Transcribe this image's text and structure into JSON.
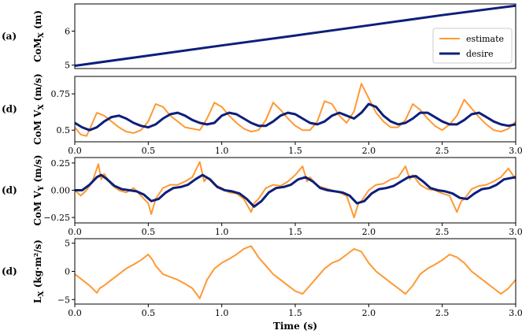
{
  "chart_data": [
    {
      "type": "line",
      "tag": "(a)",
      "ylabel": "CoM",
      "ylabel_sub": "X",
      "ylabel_unit": "(m)",
      "xlim": [
        0.0,
        3.0
      ],
      "ylim": [
        4.9,
        6.8
      ],
      "yticks": [
        5,
        6
      ],
      "xticks": [],
      "legend": {
        "placement": "right",
        "entries": [
          "estimate",
          "desire"
        ]
      },
      "series": [
        {
          "name": "estimate",
          "color": "#ff9933",
          "x": [
            0.0,
            0.5,
            1.0,
            1.5,
            2.0,
            2.5,
            3.0
          ],
          "values": [
            4.98,
            5.28,
            5.58,
            5.87,
            6.17,
            6.47,
            6.75
          ]
        },
        {
          "name": "desire",
          "color": "#0d1f7a",
          "x": [
            0.0,
            0.5,
            1.0,
            1.5,
            2.0,
            2.5,
            3.0
          ],
          "values": [
            4.98,
            5.28,
            5.58,
            5.87,
            6.17,
            6.47,
            6.75
          ]
        }
      ]
    },
    {
      "type": "line",
      "tag": "(d)",
      "ylabel": "CoM V",
      "ylabel_sub": "X",
      "ylabel_unit": "(m/s)",
      "xlim": [
        0.0,
        3.0
      ],
      "ylim": [
        0.42,
        0.87
      ],
      "yticks": [
        0.5,
        0.75
      ],
      "xticks": [
        "0.0",
        "0.5",
        "1.0",
        "1.5",
        "2.0",
        "2.5",
        "3.0"
      ],
      "series": [
        {
          "name": "estimate",
          "color": "#ff9933",
          "x": [
            0.0,
            0.04,
            0.08,
            0.12,
            0.15,
            0.2,
            0.25,
            0.3,
            0.35,
            0.4,
            0.45,
            0.5,
            0.55,
            0.6,
            0.65,
            0.7,
            0.75,
            0.8,
            0.85,
            0.9,
            0.95,
            1.0,
            1.05,
            1.1,
            1.15,
            1.2,
            1.25,
            1.3,
            1.35,
            1.4,
            1.45,
            1.5,
            1.55,
            1.6,
            1.65,
            1.7,
            1.75,
            1.8,
            1.85,
            1.9,
            1.95,
            2.0,
            2.05,
            2.1,
            2.15,
            2.2,
            2.25,
            2.3,
            2.35,
            2.4,
            2.45,
            2.5,
            2.55,
            2.6,
            2.65,
            2.7,
            2.75,
            2.8,
            2.85,
            2.9,
            2.95,
            3.0
          ],
          "values": [
            0.52,
            0.47,
            0.46,
            0.55,
            0.62,
            0.6,
            0.56,
            0.52,
            0.49,
            0.48,
            0.5,
            0.56,
            0.68,
            0.66,
            0.6,
            0.56,
            0.52,
            0.51,
            0.5,
            0.58,
            0.69,
            0.66,
            0.6,
            0.55,
            0.51,
            0.49,
            0.5,
            0.57,
            0.69,
            0.64,
            0.58,
            0.53,
            0.5,
            0.5,
            0.56,
            0.7,
            0.68,
            0.6,
            0.55,
            0.63,
            0.82,
            0.72,
            0.62,
            0.56,
            0.52,
            0.52,
            0.57,
            0.68,
            0.64,
            0.58,
            0.53,
            0.5,
            0.54,
            0.6,
            0.71,
            0.65,
            0.59,
            0.54,
            0.5,
            0.49,
            0.51,
            0.56
          ]
        },
        {
          "name": "desire",
          "color": "#0d1f7a",
          "x": [
            0.0,
            0.05,
            0.1,
            0.15,
            0.2,
            0.25,
            0.3,
            0.35,
            0.4,
            0.45,
            0.5,
            0.55,
            0.6,
            0.65,
            0.7,
            0.75,
            0.8,
            0.85,
            0.9,
            0.95,
            1.0,
            1.05,
            1.1,
            1.15,
            1.2,
            1.25,
            1.3,
            1.35,
            1.4,
            1.45,
            1.5,
            1.55,
            1.6,
            1.65,
            1.7,
            1.75,
            1.8,
            1.85,
            1.9,
            1.95,
            2.0,
            2.05,
            2.1,
            2.15,
            2.2,
            2.25,
            2.3,
            2.35,
            2.4,
            2.45,
            2.5,
            2.55,
            2.6,
            2.65,
            2.7,
            2.75,
            2.8,
            2.85,
            2.9,
            2.95,
            3.0
          ],
          "values": [
            0.55,
            0.52,
            0.5,
            0.52,
            0.56,
            0.59,
            0.6,
            0.58,
            0.55,
            0.53,
            0.52,
            0.54,
            0.58,
            0.61,
            0.62,
            0.6,
            0.57,
            0.55,
            0.54,
            0.55,
            0.6,
            0.62,
            0.61,
            0.58,
            0.55,
            0.53,
            0.53,
            0.56,
            0.6,
            0.62,
            0.61,
            0.58,
            0.55,
            0.54,
            0.56,
            0.6,
            0.62,
            0.6,
            0.58,
            0.62,
            0.68,
            0.66,
            0.6,
            0.56,
            0.54,
            0.55,
            0.58,
            0.62,
            0.62,
            0.59,
            0.56,
            0.54,
            0.54,
            0.57,
            0.61,
            0.62,
            0.59,
            0.56,
            0.54,
            0.53,
            0.54
          ]
        }
      ]
    },
    {
      "type": "line",
      "tag": "(d)",
      "ylabel": "CoM V",
      "ylabel_sub": "Y",
      "ylabel_unit": "(m/s)",
      "xlim": [
        0.0,
        3.0
      ],
      "ylim": [
        -0.3,
        0.3
      ],
      "yticks": [
        -0.25,
        0.0,
        0.25
      ],
      "ytick_labels": [
        "−0.25",
        "0.00",
        "0.25"
      ],
      "xticks": [
        "0.0",
        "0.5",
        "1.0",
        "1.5",
        "2.0",
        "2.5",
        "3.0"
      ],
      "series": [
        {
          "name": "estimate",
          "color": "#ff9933",
          "x": [
            0.0,
            0.04,
            0.08,
            0.12,
            0.16,
            0.18,
            0.2,
            0.25,
            0.3,
            0.35,
            0.4,
            0.45,
            0.5,
            0.52,
            0.55,
            0.6,
            0.65,
            0.7,
            0.75,
            0.8,
            0.85,
            0.88,
            0.9,
            0.95,
            1.0,
            1.05,
            1.1,
            1.15,
            1.2,
            1.22,
            1.25,
            1.3,
            1.35,
            1.4,
            1.45,
            1.5,
            1.55,
            1.58,
            1.6,
            1.65,
            1.7,
            1.75,
            1.8,
            1.85,
            1.9,
            1.93,
            1.95,
            2.0,
            2.05,
            2.1,
            2.15,
            2.2,
            2.25,
            2.28,
            2.3,
            2.35,
            2.4,
            2.45,
            2.5,
            2.55,
            2.6,
            2.63,
            2.65,
            2.7,
            2.75,
            2.8,
            2.85,
            2.9,
            2.95,
            3.0
          ],
          "values": [
            0.0,
            -0.05,
            0.0,
            0.08,
            0.24,
            0.1,
            0.15,
            0.05,
            0.0,
            -0.02,
            0.02,
            -0.05,
            -0.12,
            -0.22,
            -0.08,
            0.02,
            0.05,
            0.05,
            0.08,
            0.12,
            0.26,
            0.08,
            0.12,
            0.05,
            0.02,
            -0.02,
            -0.03,
            -0.08,
            -0.2,
            -0.12,
            -0.08,
            0.02,
            0.05,
            0.04,
            0.08,
            0.14,
            0.22,
            0.08,
            0.12,
            0.04,
            0.02,
            0.0,
            -0.02,
            -0.05,
            -0.25,
            -0.12,
            -0.1,
            0.0,
            0.05,
            0.06,
            0.1,
            0.12,
            0.22,
            0.1,
            0.14,
            0.05,
            0.01,
            0.0,
            -0.03,
            -0.05,
            -0.2,
            -0.1,
            -0.08,
            0.01,
            0.04,
            0.05,
            0.08,
            0.12,
            0.2,
            0.1
          ]
        },
        {
          "name": "desire",
          "color": "#0d1f7a",
          "x": [
            0.0,
            0.05,
            0.1,
            0.15,
            0.18,
            0.22,
            0.27,
            0.32,
            0.37,
            0.42,
            0.47,
            0.52,
            0.57,
            0.62,
            0.67,
            0.72,
            0.77,
            0.82,
            0.87,
            0.92,
            0.97,
            1.02,
            1.07,
            1.12,
            1.17,
            1.22,
            1.27,
            1.32,
            1.37,
            1.42,
            1.47,
            1.52,
            1.57,
            1.62,
            1.67,
            1.72,
            1.77,
            1.82,
            1.87,
            1.92,
            1.97,
            2.02,
            2.07,
            2.12,
            2.17,
            2.22,
            2.27,
            2.32,
            2.37,
            2.42,
            2.47,
            2.52,
            2.57,
            2.62,
            2.67,
            2.72,
            2.77,
            2.82,
            2.87,
            2.92,
            3.0
          ],
          "values": [
            0.0,
            0.0,
            0.05,
            0.12,
            0.14,
            0.1,
            0.04,
            0.01,
            0.0,
            -0.01,
            -0.04,
            -0.1,
            -0.08,
            -0.02,
            0.02,
            0.03,
            0.05,
            0.1,
            0.14,
            0.1,
            0.03,
            0.0,
            -0.01,
            -0.03,
            -0.08,
            -0.15,
            -0.1,
            -0.02,
            0.02,
            0.03,
            0.05,
            0.1,
            0.12,
            0.08,
            0.02,
            0.0,
            -0.01,
            -0.02,
            -0.05,
            -0.12,
            -0.1,
            -0.03,
            0.01,
            0.02,
            0.04,
            0.08,
            0.12,
            0.13,
            0.08,
            0.02,
            0.0,
            -0.01,
            -0.03,
            -0.07,
            -0.08,
            -0.03,
            0.01,
            0.02,
            0.05,
            0.1,
            0.12
          ]
        }
      ]
    },
    {
      "type": "line",
      "tag": "(d)",
      "ylabel": "L",
      "ylabel_sub": "X",
      "ylabel_unit": "(kg·m²/s)",
      "xlim": [
        0.0,
        3.0
      ],
      "ylim": [
        -5.8,
        5.8
      ],
      "yticks": [
        -5,
        0,
        5
      ],
      "ytick_labels": [
        "−5",
        "0",
        "5"
      ],
      "xticks": [
        "0.0",
        "0.5",
        "1.0",
        "1.5",
        "2.0",
        "2.5",
        "3.0"
      ],
      "xlabel": "Time (s)",
      "series": [
        {
          "name": "estimate",
          "color": "#ff9933",
          "x": [
            0.0,
            0.05,
            0.1,
            0.15,
            0.17,
            0.2,
            0.25,
            0.3,
            0.35,
            0.4,
            0.45,
            0.5,
            0.53,
            0.55,
            0.6,
            0.65,
            0.7,
            0.75,
            0.8,
            0.85,
            0.9,
            0.95,
            1.0,
            1.05,
            1.1,
            1.15,
            1.2,
            1.25,
            1.3,
            1.35,
            1.4,
            1.45,
            1.5,
            1.55,
            1.6,
            1.65,
            1.7,
            1.75,
            1.8,
            1.85,
            1.9,
            1.95,
            2.0,
            2.05,
            2.1,
            2.15,
            2.2,
            2.25,
            2.3,
            2.35,
            2.4,
            2.45,
            2.5,
            2.55,
            2.6,
            2.65,
            2.7,
            2.75,
            2.8,
            2.85,
            2.9,
            2.95,
            3.0
          ],
          "values": [
            -0.5,
            -1.5,
            -2.5,
            -3.8,
            -3.0,
            -2.5,
            -1.5,
            -0.5,
            0.5,
            1.2,
            2.0,
            3.0,
            2.0,
            1.0,
            -0.5,
            -1.0,
            -1.5,
            -2.2,
            -3.0,
            -4.8,
            -1.5,
            0.5,
            1.5,
            2.2,
            3.0,
            4.0,
            4.5,
            2.5,
            1.0,
            -0.5,
            -1.5,
            -2.5,
            -3.5,
            -4.0,
            -2.5,
            -1.0,
            0.5,
            1.5,
            2.0,
            3.0,
            4.0,
            3.5,
            1.5,
            0.0,
            -1.0,
            -2.0,
            -3.0,
            -4.0,
            -2.5,
            -0.5,
            0.5,
            1.2,
            2.0,
            3.0,
            2.5,
            1.5,
            0.0,
            -1.0,
            -2.0,
            -3.0,
            -4.0,
            -3.0,
            -1.5
          ]
        }
      ]
    }
  ]
}
